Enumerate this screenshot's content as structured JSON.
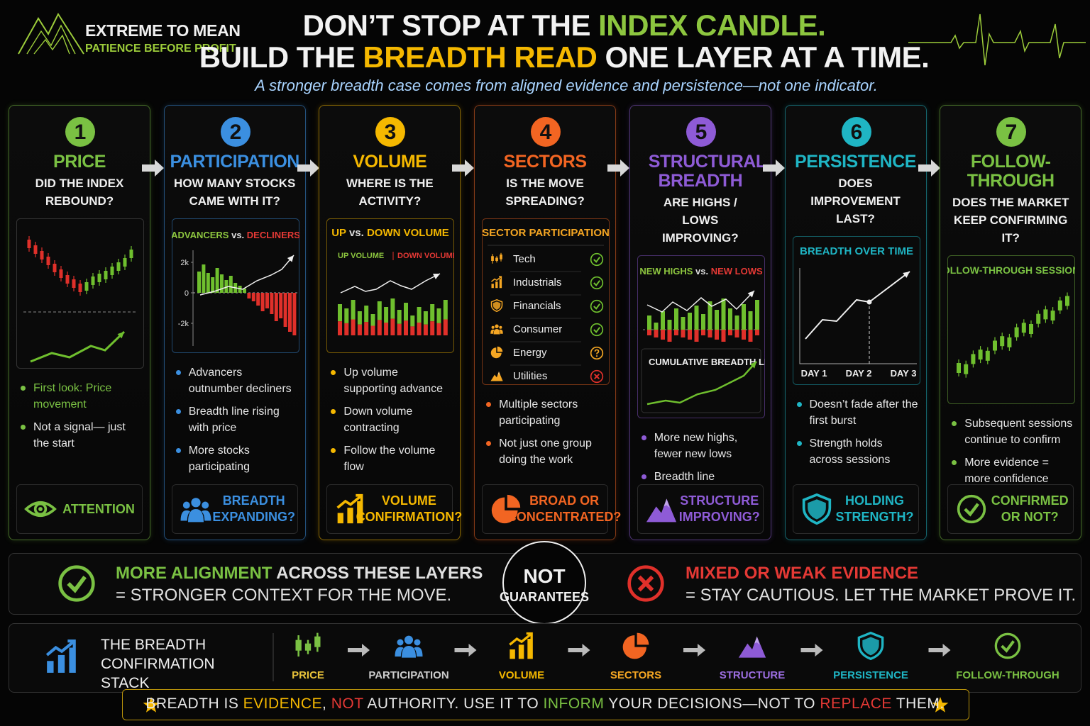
{
  "brand": {
    "name": "EXTREME TO MEAN",
    "tagline": "PATIENCE BEFORE PROFIT"
  },
  "headline": [
    [
      {
        "text": "DON’T STOP AT THE ",
        "color": "#f2f2f2"
      },
      {
        "text": "INDEX CANDLE.",
        "color": "#8dc63f"
      }
    ],
    [
      {
        "text": "BUILD THE ",
        "color": "#f2f2f2"
      },
      {
        "text": "BREADTH READ",
        "color": "#f5b800"
      },
      {
        "text": " ONE LAYER AT A TIME.",
        "color": "#f2f2f2"
      }
    ]
  ],
  "subtitle": "A stronger breadth case comes from aligned evidence and persistence—not one indicator.",
  "steps": [
    {
      "number": 1,
      "title": "PRICE",
      "question": "DID THE INDEX REBOUND?",
      "color": "#7ac143",
      "bullets": [
        "First look: Price movement",
        "Not a signal— just the start"
      ],
      "footer": "ATTENTION"
    },
    {
      "number": 2,
      "title": "PARTICIPATION",
      "question": "HOW MANY STOCKS CAME WITH IT?",
      "color": "#3b8fe0",
      "panel": {
        "title": [
          {
            "text": "ADVANCERS",
            "color": "#8dc63f"
          },
          {
            "text": " vs. ",
            "color": "#dddddd"
          },
          {
            "text": "DECLINERS",
            "color": "#e53935"
          }
        ],
        "yticks": [
          {
            "value": 2000,
            "label": "2k"
          },
          0,
          {
            "value": -2000,
            "label": "-2k"
          }
        ]
      },
      "bullets": [
        "Advancers outnumber decliners",
        "Breadth line rising with price",
        "More stocks participating"
      ],
      "footer": "BREADTH EXPANDING?"
    },
    {
      "number": 3,
      "title": "VOLUME",
      "question": "WHERE IS THE ACTIVITY?",
      "color": "#f5b800",
      "panel": {
        "title": [
          {
            "text": "UP",
            "color": "#f5b800"
          },
          {
            "text": " vs. ",
            "color": "#dddddd"
          },
          {
            "text": "DOWN VOLUME",
            "color": "#f5b800"
          }
        ],
        "legend": [
          {
            "text": "UP VOLUME",
            "color": "#8dc63f"
          },
          {
            "text": "DOWN VOLUME",
            "color": "#e53935"
          }
        ]
      },
      "bullets": [
        "Up volume supporting advance",
        "Down volume contracting",
        "Follow the volume flow"
      ],
      "footer": "VOLUME CONFIRMATION?"
    },
    {
      "number": 4,
      "title": "SECTORS",
      "question": "IS THE MOVE SPREADING?",
      "color": "#f26522",
      "panel": {
        "title": "SECTOR PARTICIPATION",
        "sectors": [
          {
            "name": "Tech",
            "status": "check"
          },
          {
            "name": "Industrials",
            "status": "check"
          },
          {
            "name": "Financials",
            "status": "check"
          },
          {
            "name": "Consumer",
            "status": "check"
          },
          {
            "name": "Energy",
            "status": "question"
          },
          {
            "name": "Utilities",
            "status": "cross"
          }
        ]
      },
      "bullets": [
        "Multiple sectors participating",
        "Not just one group doing the work"
      ],
      "footer": "BROAD OR CONCENTRATED?"
    },
    {
      "number": 5,
      "title": "STRUCTURAL BREADTH",
      "question": "ARE HIGHS / LOWS IMPROVING?",
      "color": "#8e5bd6",
      "panel": {
        "title": [
          {
            "text": "NEW HIGHS",
            "color": "#8dc63f"
          },
          {
            "text": " vs. ",
            "color": "#dddddd"
          },
          {
            "text": "NEW LOWS",
            "color": "#e53935"
          }
        ],
        "subtitle": "CUMULATIVE BREADTH LINE"
      },
      "bullets": [
        "More new highs, fewer new lows",
        "Breadth line strengthening"
      ],
      "footer": "STRUCTURE IMPROVING?"
    },
    {
      "number": 6,
      "title": "PERSISTENCE",
      "question": "DOES IMPROVEMENT LAST?",
      "color": "#1fb5c4",
      "panel": {
        "title": "BREADTH OVER TIME",
        "days": [
          "DAY 1",
          "DAY 2",
          "DAY 3"
        ]
      },
      "bullets": [
        "Doesn’t fade after the first burst",
        "Strength holds across sessions"
      ],
      "footer": "HOLDING STRENGTH?"
    },
    {
      "number": 7,
      "title": "FOLLOW-THROUGH",
      "question": "DOES THE MARKET KEEP CONFIRMING IT?",
      "color": "#7ac143",
      "panel": {
        "title": "FOLLOW-THROUGH SESSIONS"
      },
      "bullets": [
        "Subsequent sessions continue to confirm",
        "More evidence = more confidence"
      ],
      "footer": "CONFIRMED OR NOT?"
    }
  ],
  "summary": {
    "left": {
      "line1": [
        {
          "text": "MORE ALIGNMENT",
          "color": "#7ac143"
        },
        {
          "text": " ACROSS THESE LAYERS",
          "color": "#e0e0e0"
        }
      ],
      "line2": "= STRONGER CONTEXT FOR THE MOVE."
    },
    "center": [
      "NOT",
      "GUARANTEES"
    ],
    "right": {
      "line1": "MIXED OR WEAK EVIDENCE",
      "line2": "= STAY CAUTIOUS. LET THE MARKET PROVE IT."
    }
  },
  "stack": {
    "title": "THE BREADTH CONFIRMATION STACK",
    "items": [
      {
        "label": "PRICE",
        "color": "#e8c23a"
      },
      {
        "label": "PARTICIPATION",
        "color": "#cccccc"
      },
      {
        "label": "VOLUME",
        "color": "#f5b800"
      },
      {
        "label": "SECTORS",
        "color": "#f5a623"
      },
      {
        "label": "STRUCTURE",
        "color": "#9b6de0"
      },
      {
        "label": "PERSISTENCE",
        "color": "#1fb5c4"
      },
      {
        "label": "FOLLOW-THROUGH",
        "color": "#7ac143"
      }
    ]
  },
  "banner": [
    {
      "text": "BREADTH IS ",
      "color": "#e8e8e8"
    },
    {
      "text": "EVIDENCE",
      "color": "#f5b800"
    },
    {
      "text": ", ",
      "color": "#e8e8e8"
    },
    {
      "text": "NOT",
      "color": "#e53935"
    },
    {
      "text": " AUTHORITY. USE IT TO ",
      "color": "#e8e8e8"
    },
    {
      "text": "INFORM",
      "color": "#7ac143"
    },
    {
      "text": " YOUR DECISIONS—NOT TO ",
      "color": "#e8e8e8"
    },
    {
      "text": "REPLACE",
      "color": "#e53935"
    },
    {
      "text": " THEM.",
      "color": "#e8e8e8"
    }
  ]
}
